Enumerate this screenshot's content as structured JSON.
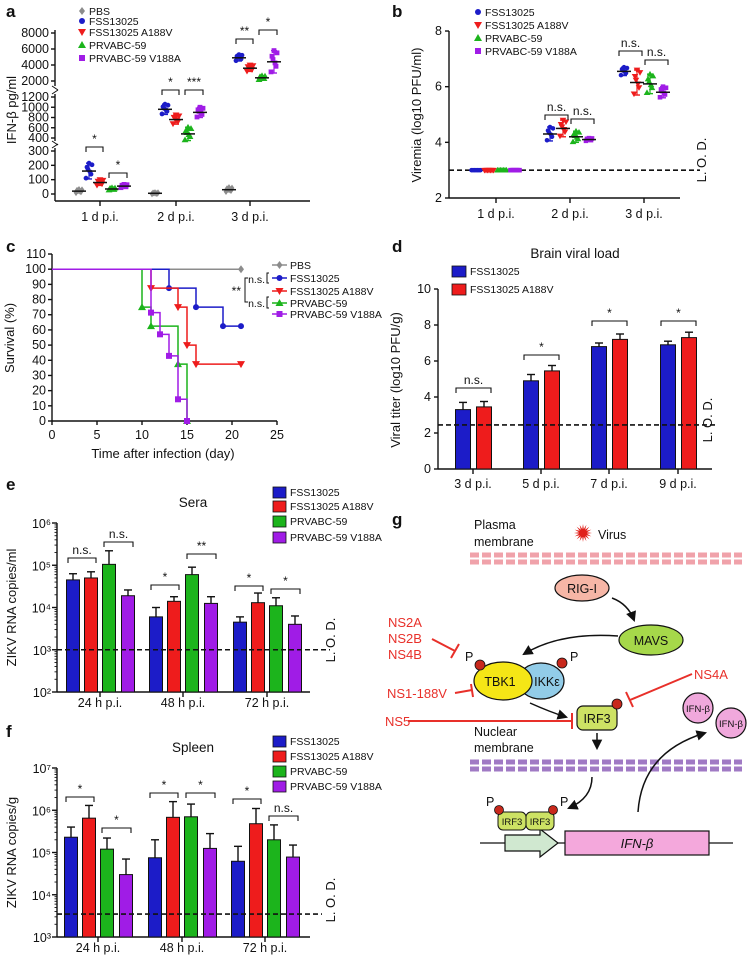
{
  "panel_labels": [
    "a",
    "b",
    "c",
    "d",
    "e",
    "f",
    "g"
  ],
  "colors": {
    "PBS": "#8c8c8c",
    "FSS13025": "#1c1cc8",
    "FSS13025 A188V": "#ee1c1c",
    "PRVABC-59": "#1cb41c",
    "PRVABC-59 V188A": "#a01ce6",
    "inhibitor": "#e8302a"
  },
  "lod_label": "L. O. D.",
  "chart_data": [
    {
      "panel": "a",
      "type": "scatter",
      "ylabel": "IFN-β pg/ml",
      "categories": [
        "1 d p.i.",
        "2 d p.i.",
        "3 d p.i."
      ],
      "y_axis_segments": [
        [
          0,
          300
        ],
        [
          400,
          1200
        ],
        [
          2000,
          8000
        ]
      ],
      "yticks": [
        0,
        100,
        200,
        300,
        400,
        600,
        800,
        1000,
        1200,
        2000,
        4000,
        6000,
        8000
      ],
      "ytick_labels": [
        "0",
        "100",
        "200",
        "300",
        "400",
        "600",
        "800",
        "1000",
        "1200",
        "2000",
        "4000",
        "6000",
        "8000"
      ],
      "legend": "top-left",
      "series": [
        {
          "name": "PBS",
          "marker": "diamond",
          "mean": [
            20,
            5,
            30
          ],
          "sd": [
            12,
            5,
            15
          ]
        },
        {
          "name": "FSS13025",
          "marker": "circle",
          "mean": [
            160,
            960,
            4900
          ],
          "sd": [
            55,
            100,
            400
          ]
        },
        {
          "name": "FSS13025 A188V",
          "marker": "triangle-down",
          "mean": [
            80,
            760,
            3600
          ],
          "sd": [
            20,
            90,
            400
          ]
        },
        {
          "name": "PRVABC-59",
          "marker": "triangle-up",
          "mean": [
            35,
            480,
            2400
          ],
          "sd": [
            8,
            130,
            250
          ]
        },
        {
          "name": "PRVABC-59 V188A",
          "marker": "square",
          "mean": [
            55,
            900,
            4400
          ],
          "sd": [
            12,
            100,
            1400
          ]
        }
      ],
      "significance": [
        {
          "category": 0,
          "from": 1,
          "to": 2,
          "label": "*"
        },
        {
          "category": 0,
          "from": 3,
          "to": 4,
          "label": "*"
        },
        {
          "category": 1,
          "from": 1,
          "to": 2,
          "label": "*"
        },
        {
          "category": 1,
          "from": 3,
          "to": 4,
          "label": "***"
        },
        {
          "category": 2,
          "from": 1,
          "to": 2,
          "label": "**"
        },
        {
          "category": 2,
          "from": 3,
          "to": 4,
          "label": "*"
        }
      ]
    },
    {
      "panel": "b",
      "type": "scatter",
      "ylabel": "Viremia (log10 PFU/ml)",
      "categories": [
        "1 d p.i.",
        "2 d p.i.",
        "3 d p.i."
      ],
      "ylim": [
        2,
        8
      ],
      "yticks": [
        2,
        4,
        6,
        8
      ],
      "ytick_labels": [
        "2",
        "4",
        "6",
        "8"
      ],
      "lod": 3,
      "legend": "top-left",
      "series": [
        {
          "name": "FSS13025",
          "marker": "circle",
          "mean": [
            3,
            4.3,
            6.55
          ],
          "sd": [
            0,
            0.25,
            0.15
          ]
        },
        {
          "name": "FSS13025 A188V",
          "marker": "triangle-down",
          "mean": [
            3,
            4.5,
            6.15
          ],
          "sd": [
            0,
            0.3,
            0.45
          ]
        },
        {
          "name": "PRVABC-59",
          "marker": "triangle-up",
          "mean": [
            3,
            4.2,
            6.1
          ],
          "sd": [
            0,
            0.2,
            0.35
          ]
        },
        {
          "name": "PRVABC-59 V188A",
          "marker": "square",
          "mean": [
            3,
            4.1,
            5.8
          ],
          "sd": [
            0,
            0.05,
            0.2
          ]
        }
      ],
      "significance": [
        {
          "category": 1,
          "from": 0,
          "to": 1,
          "label": "n.s."
        },
        {
          "category": 1,
          "from": 2,
          "to": 3,
          "label": "n.s."
        },
        {
          "category": 2,
          "from": 0,
          "to": 1,
          "label": "n.s."
        },
        {
          "category": 2,
          "from": 2,
          "to": 3,
          "label": "n.s."
        }
      ]
    },
    {
      "panel": "c",
      "type": "line",
      "xlabel": "Time after infection (day)",
      "ylabel": "Survival (%)",
      "xlim": [
        0,
        25
      ],
      "ylim": [
        0,
        110
      ],
      "xticks": [
        0,
        5,
        10,
        15,
        20,
        25
      ],
      "xtick_labels": [
        "0",
        "5",
        "10",
        "15",
        "20",
        "25"
      ],
      "yticks": [
        0,
        10,
        20,
        30,
        40,
        50,
        60,
        70,
        80,
        90,
        100,
        110
      ],
      "ytick_labels": [
        "0",
        "10",
        "20",
        "30",
        "40",
        "50",
        "60",
        "70",
        "80",
        "90",
        "100",
        "110"
      ],
      "legend": "right",
      "series": [
        {
          "name": "PBS",
          "marker": "diamond",
          "times": [
            0,
            21
          ],
          "survival": [
            100,
            100
          ]
        },
        {
          "name": "FSS13025",
          "marker": "circle",
          "times": [
            0,
            13,
            16,
            19,
            21
          ],
          "survival": [
            100,
            87.5,
            75,
            62.5,
            62.5
          ]
        },
        {
          "name": "FSS13025 A188V",
          "marker": "triangle-down",
          "times": [
            0,
            11,
            14,
            15,
            16,
            21
          ],
          "survival": [
            100,
            87.5,
            75,
            50,
            37.5,
            37.5
          ]
        },
        {
          "name": "PRVABC-59",
          "marker": "triangle-up",
          "times": [
            0,
            10,
            11,
            14,
            15
          ],
          "survival": [
            100,
            75,
            62.5,
            37.5,
            0
          ]
        },
        {
          "name": "PRVABC-59 V188A",
          "marker": "square",
          "times": [
            0,
            11,
            12,
            13,
            14,
            15
          ],
          "survival": [
            100,
            71.4,
            57.1,
            42.9,
            14.3,
            0
          ]
        }
      ],
      "significance": [
        {
          "between": [
            "FSS13025",
            "FSS13025 A188V"
          ],
          "label": "n.s."
        },
        {
          "between": [
            "PRVABC-59",
            "PRVABC-59 V188A"
          ],
          "label": "n.s."
        },
        {
          "between": [
            "FSS13025 group",
            "PRVABC-59 group"
          ],
          "label": "**"
        }
      ]
    },
    {
      "panel": "d",
      "type": "bar",
      "title": "Brain viral load",
      "ylabel": "Viral titer (log10 PFU/g)",
      "categories": [
        "3 d p.i.",
        "5 d p.i.",
        "7 d p.i.",
        "9 d p.i."
      ],
      "ylim": [
        0,
        10
      ],
      "yticks": [
        0,
        2,
        4,
        6,
        8,
        10
      ],
      "ytick_labels": [
        "0",
        "2",
        "4",
        "6",
        "8",
        "10"
      ],
      "lod": 2.45,
      "legend": "top-left",
      "series": [
        {
          "name": "FSS13025",
          "values": [
            3.3,
            4.9,
            6.8,
            6.9
          ],
          "error": [
            0.4,
            0.35,
            0.2,
            0.2
          ]
        },
        {
          "name": "FSS13025 A188V",
          "values": [
            3.45,
            5.45,
            7.2,
            7.3
          ],
          "error": [
            0.3,
            0.3,
            0.3,
            0.3
          ]
        }
      ],
      "significance": [
        {
          "category": 0,
          "label": "n.s."
        },
        {
          "category": 1,
          "label": "*"
        },
        {
          "category": 2,
          "label": "*"
        },
        {
          "category": 3,
          "label": "*"
        }
      ]
    },
    {
      "panel": "e",
      "type": "bar",
      "title": "Sera",
      "ylabel": "ZIKV RNA copies/ml",
      "yscale": "log",
      "categories": [
        "24 h p.i.",
        "48 h p.i.",
        "72 h p.i."
      ],
      "ylim": [
        100,
        1000000
      ],
      "yticks": [
        100,
        1000,
        10000,
        100000,
        1000000
      ],
      "ytick_labels": [
        "10²",
        "10³",
        "10⁴",
        "10⁵",
        "10⁶"
      ],
      "lod": 1000,
      "legend": "top-right",
      "series": [
        {
          "name": "FSS13025",
          "values": [
            45000,
            6000,
            4500
          ],
          "error_top": [
            63000,
            10000,
            6000
          ]
        },
        {
          "name": "FSS13025 A188V",
          "values": [
            50000,
            14000,
            13000
          ],
          "error_top": [
            70000,
            18000,
            22000
          ]
        },
        {
          "name": "PRVABC-59",
          "values": [
            105000,
            60000,
            11000
          ],
          "error_top": [
            220000,
            90000,
            17000
          ]
        },
        {
          "name": "PRVABC-59 V188A",
          "values": [
            19000,
            12500,
            4000
          ],
          "error_top": [
            26000,
            18000,
            6300
          ]
        }
      ],
      "significance": [
        {
          "category": 0,
          "from": 0,
          "to": 1,
          "label": "n.s."
        },
        {
          "category": 0,
          "from": 2,
          "to": 3,
          "label": "n.s."
        },
        {
          "category": 1,
          "from": 0,
          "to": 1,
          "label": "*"
        },
        {
          "category": 1,
          "from": 2,
          "to": 3,
          "label": "**"
        },
        {
          "category": 2,
          "from": 0,
          "to": 1,
          "label": "*"
        },
        {
          "category": 2,
          "from": 2,
          "to": 3,
          "label": "*"
        }
      ]
    },
    {
      "panel": "f",
      "type": "bar",
      "title": "Spleen",
      "ylabel": "ZIKV RNA copies/g",
      "yscale": "log",
      "categories": [
        "24 h p.i.",
        "48 h p.i.",
        "72 h p.i."
      ],
      "ylim": [
        1000,
        10000000
      ],
      "yticks": [
        1000,
        10000,
        100000,
        1000000,
        10000000
      ],
      "ytick_labels": [
        "10³",
        "10⁴",
        "10⁵",
        "10⁶",
        "10⁷"
      ],
      "lod": 3500,
      "legend": "top-right",
      "series": [
        {
          "name": "FSS13025",
          "values": [
            230000,
            75000,
            62000
          ],
          "error_top": [
            400000,
            200000,
            140000
          ]
        },
        {
          "name": "FSS13025 A188V",
          "values": [
            650000,
            680000,
            480000
          ],
          "error_top": [
            1300000,
            1600000,
            1100000
          ]
        },
        {
          "name": "PRVABC-59",
          "values": [
            120000,
            700000,
            200000
          ],
          "error_top": [
            220000,
            1400000,
            450000
          ]
        },
        {
          "name": "PRVABC-59 V188A",
          "values": [
            30000,
            125000,
            78000
          ],
          "error_top": [
            70000,
            280000,
            150000
          ]
        }
      ],
      "significance": [
        {
          "category": 0,
          "from": 0,
          "to": 1,
          "label": "*"
        },
        {
          "category": 0,
          "from": 2,
          "to": 3,
          "label": "*"
        },
        {
          "category": 1,
          "from": 0,
          "to": 1,
          "label": "*"
        },
        {
          "category": 1,
          "from": 2,
          "to": 3,
          "label": "*"
        },
        {
          "category": 2,
          "from": 0,
          "to": 1,
          "label": "*"
        },
        {
          "category": 2,
          "from": 2,
          "to": 3,
          "label": "n.s."
        }
      ]
    }
  ],
  "diagram": {
    "plasma_membrane": [
      "Plasma",
      "membrane"
    ],
    "virus": "Virus",
    "rig_i": "RIG-I",
    "mavs": "MAVS",
    "tbk1": "TBK1",
    "ikke": "IKKε",
    "phospho": "P",
    "irf3": "IRF3",
    "ifn_beta_protein": "IFN-β",
    "nuclear_membrane": [
      "Nuclear",
      "membrane"
    ],
    "ifn_beta_gene": "IFN-β",
    "inhibitors": {
      "ns2a": "NS2A",
      "ns2b": "NS2B",
      "ns4b": "NS4B",
      "ns1": "NS1-188V",
      "ns4a": "NS4A",
      "ns5": "NS5"
    }
  }
}
